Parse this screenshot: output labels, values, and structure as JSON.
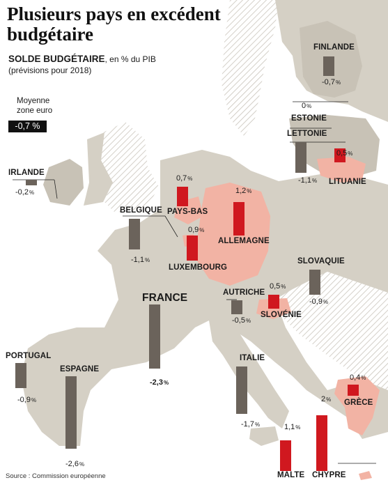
{
  "title": "Plusieurs pays en excédent budgétaire",
  "subtitle": {
    "main": "SOLDE BUDGÉTAIRE",
    "unit": ", en % du PIB",
    "note": "(prévisions pour 2018)"
  },
  "average": {
    "label_line1": "Moyenne",
    "label_line2": "zone euro",
    "value": "-0,7 %"
  },
  "source": "Source : Commission européenne",
  "colors": {
    "positive_bar": "#d0181f",
    "negative_bar": "#6b635b",
    "surplus_country": "#f2b3a4",
    "land": "#d5d0c5",
    "sea": "#ffffff"
  },
  "chart_data": {
    "type": "bar",
    "categories": [
      "FINLANDE",
      "ESTONIE",
      "LETTONIE",
      "LITUANIE",
      "IRLANDE",
      "PAYS-BAS",
      "ALLEMAGNE",
      "BELGIQUE",
      "LUXEMBOURG",
      "FRANCE",
      "SLOVAQUIE",
      "AUTRICHE",
      "SLOVÉNIE",
      "PORTUGAL",
      "ESPAGNE",
      "ITALIE",
      "GRÈCE",
      "MALTE",
      "CHYPRE"
    ],
    "values": [
      -0.7,
      0,
      -1.1,
      0.5,
      -0.2,
      0.7,
      1.2,
      -1.1,
      0.9,
      -2.3,
      -0.9,
      -0.5,
      0.5,
      -0.9,
      -2.6,
      -1.7,
      0.4,
      1.1,
      2
    ],
    "labels": [
      "-0,7 %",
      "0 %",
      "-1,1 %",
      "0,5 %",
      "-0,2 %",
      "0,7 %",
      "1,2 %",
      "-1,1 %",
      "0,9 %",
      "-2,3 %",
      "-0,9 %",
      "-0,5 %",
      "0,5 %",
      "-0,9 %",
      "-2,6 %",
      "-1,7 %",
      "0,4 %",
      "1,1 %",
      "2 %"
    ]
  }
}
